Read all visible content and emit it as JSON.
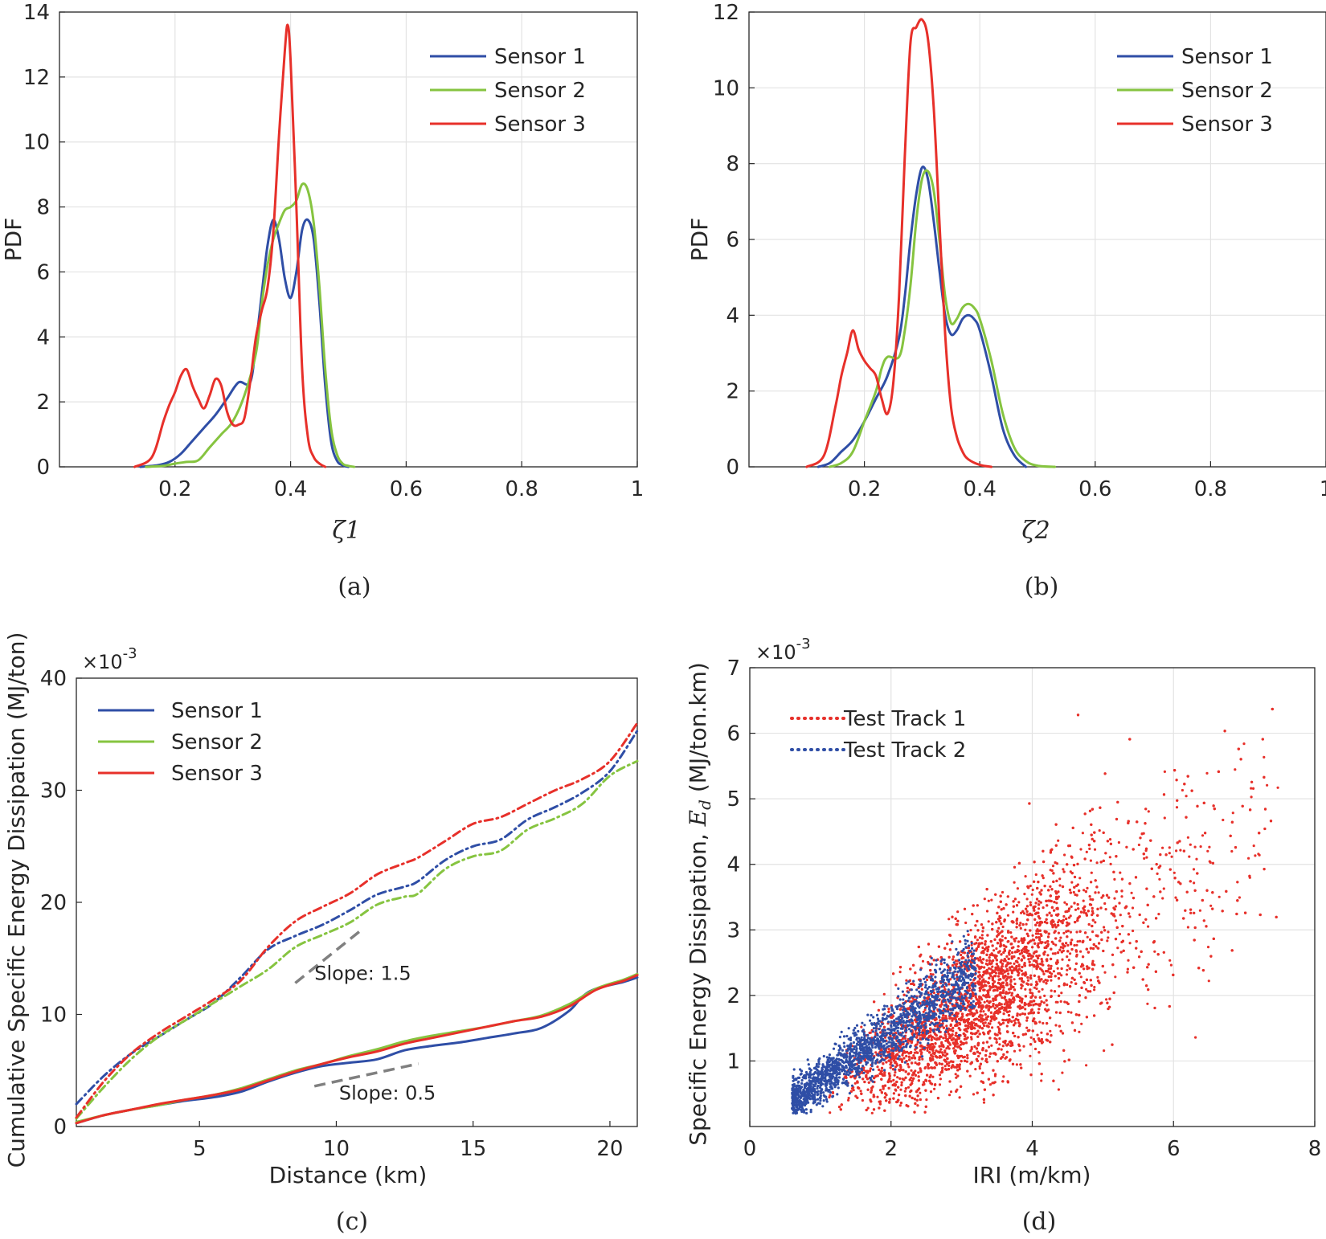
{
  "chart_data": [
    {
      "type": "line",
      "caption": "(a)",
      "xlabel": "ζ1",
      "ylabel": "PDF",
      "xlim": [
        0.0,
        1.0
      ],
      "ylim": [
        0,
        14
      ],
      "xticks": [
        0.2,
        0.4,
        0.6,
        0.8,
        1
      ],
      "yticks": [
        0,
        2,
        4,
        6,
        8,
        10,
        12,
        14
      ],
      "xtick_labels": [
        "0.2",
        "0.4",
        "0.6",
        "0.8",
        "1"
      ],
      "ytick_labels": [
        "0",
        "2",
        "4",
        "6",
        "8",
        "10",
        "12",
        "14"
      ],
      "grid": true,
      "legend": "top-right",
      "series": [
        {
          "name": "Sensor 1",
          "color": "#2f4ea6",
          "style": "solid",
          "x": [
            0.14,
            0.17,
            0.19,
            0.21,
            0.23,
            0.25,
            0.27,
            0.29,
            0.31,
            0.33,
            0.34,
            0.35,
            0.36,
            0.37,
            0.38,
            0.39,
            0.4,
            0.41,
            0.42,
            0.43,
            0.44,
            0.45,
            0.46,
            0.47,
            0.48,
            0.49,
            0.5
          ],
          "y": [
            0,
            0.05,
            0.15,
            0.4,
            0.8,
            1.2,
            1.6,
            2.1,
            2.6,
            2.6,
            3.8,
            5.3,
            6.8,
            7.6,
            7.0,
            5.8,
            5.2,
            6.0,
            7.3,
            7.6,
            7.0,
            5.0,
            2.5,
            0.8,
            0.2,
            0.05,
            0
          ]
        },
        {
          "name": "Sensor 2",
          "color": "#86c440",
          "style": "solid",
          "x": [
            0.15,
            0.18,
            0.2,
            0.22,
            0.24,
            0.26,
            0.28,
            0.3,
            0.32,
            0.34,
            0.35,
            0.36,
            0.37,
            0.38,
            0.39,
            0.4,
            0.41,
            0.42,
            0.43,
            0.44,
            0.45,
            0.46,
            0.47,
            0.48,
            0.49,
            0.5,
            0.51
          ],
          "y": [
            0,
            0.03,
            0.1,
            0.15,
            0.2,
            0.6,
            1.0,
            1.4,
            2.2,
            3.5,
            5.0,
            6.2,
            7.0,
            7.5,
            7.9,
            8.0,
            8.2,
            8.7,
            8.5,
            7.5,
            5.5,
            3.0,
            1.2,
            0.4,
            0.1,
            0.03,
            0
          ]
        },
        {
          "name": "Sensor 3",
          "color": "#e7302a",
          "style": "solid",
          "x": [
            0.13,
            0.16,
            0.18,
            0.19,
            0.2,
            0.21,
            0.22,
            0.23,
            0.24,
            0.25,
            0.26,
            0.27,
            0.28,
            0.29,
            0.3,
            0.31,
            0.32,
            0.33,
            0.34,
            0.35,
            0.36,
            0.37,
            0.38,
            0.39,
            0.395,
            0.4,
            0.41,
            0.42,
            0.43,
            0.44,
            0.45,
            0.46
          ],
          "y": [
            0,
            0.3,
            1.4,
            1.9,
            2.3,
            2.8,
            3.0,
            2.5,
            2.1,
            1.8,
            2.2,
            2.7,
            2.5,
            1.7,
            1.3,
            1.3,
            1.5,
            2.6,
            4.0,
            4.8,
            5.5,
            7.2,
            10.2,
            12.8,
            13.6,
            12.5,
            8.0,
            3.0,
            0.9,
            0.3,
            0.1,
            0
          ]
        }
      ]
    },
    {
      "type": "line",
      "caption": "(b)",
      "xlabel": "ζ2",
      "ylabel": "PDF",
      "xlim": [
        0.0,
        1.0
      ],
      "ylim": [
        0,
        12
      ],
      "xticks": [
        0.2,
        0.4,
        0.6,
        0.8,
        1
      ],
      "yticks": [
        0,
        2,
        4,
        6,
        8,
        10,
        12
      ],
      "xtick_labels": [
        "0.2",
        "0.4",
        "0.6",
        "0.8",
        "1"
      ],
      "ytick_labels": [
        "0",
        "2",
        "4",
        "6",
        "8",
        "10",
        "12"
      ],
      "grid": true,
      "legend": "top-right",
      "series": [
        {
          "name": "Sensor 1",
          "color": "#2f4ea6",
          "style": "solid",
          "x": [
            0.12,
            0.14,
            0.16,
            0.18,
            0.2,
            0.22,
            0.24,
            0.26,
            0.27,
            0.28,
            0.29,
            0.3,
            0.31,
            0.32,
            0.33,
            0.34,
            0.35,
            0.36,
            0.37,
            0.38,
            0.39,
            0.4,
            0.42,
            0.44,
            0.46,
            0.48
          ],
          "y": [
            0,
            0.1,
            0.4,
            0.7,
            1.2,
            1.8,
            2.4,
            3.4,
            4.5,
            6.0,
            7.2,
            7.9,
            7.6,
            6.5,
            5.2,
            4.0,
            3.5,
            3.6,
            3.9,
            4.0,
            3.9,
            3.6,
            2.4,
            1.0,
            0.3,
            0
          ]
        },
        {
          "name": "Sensor 2",
          "color": "#86c440",
          "style": "solid",
          "x": [
            0.14,
            0.16,
            0.18,
            0.2,
            0.22,
            0.23,
            0.24,
            0.26,
            0.27,
            0.28,
            0.29,
            0.3,
            0.31,
            0.32,
            0.33,
            0.34,
            0.35,
            0.36,
            0.37,
            0.38,
            0.39,
            0.4,
            0.42,
            0.44,
            0.46,
            0.48,
            0.5,
            0.53
          ],
          "y": [
            0,
            0.1,
            0.4,
            1.2,
            2.0,
            2.6,
            2.9,
            2.9,
            3.6,
            4.8,
            6.5,
            7.6,
            7.8,
            7.3,
            6.0,
            4.5,
            3.8,
            3.9,
            4.2,
            4.3,
            4.2,
            3.9,
            2.8,
            1.4,
            0.5,
            0.15,
            0.03,
            0
          ]
        },
        {
          "name": "Sensor 3",
          "color": "#e7302a",
          "style": "solid",
          "x": [
            0.1,
            0.13,
            0.15,
            0.16,
            0.17,
            0.18,
            0.19,
            0.2,
            0.21,
            0.22,
            0.23,
            0.24,
            0.25,
            0.26,
            0.27,
            0.28,
            0.29,
            0.3,
            0.31,
            0.32,
            0.33,
            0.34,
            0.35,
            0.36,
            0.37,
            0.38,
            0.4,
            0.42
          ],
          "y": [
            0,
            0.3,
            1.6,
            2.4,
            3.0,
            3.6,
            3.1,
            2.8,
            2.6,
            2.4,
            1.8,
            1.4,
            2.2,
            4.5,
            8.2,
            11.2,
            11.6,
            11.8,
            11.3,
            9.5,
            6.5,
            3.5,
            1.6,
            0.8,
            0.4,
            0.2,
            0.05,
            0
          ]
        }
      ]
    },
    {
      "type": "line",
      "caption": "(c)",
      "xlabel": "Distance (km)",
      "ylabel": "Cumulative Specific Energy Dissipation (MJ/ton)",
      "exponent": "×10",
      "exponent_power": "-3",
      "xlim": [
        0.5,
        21
      ],
      "ylim": [
        0,
        40
      ],
      "xticks": [
        5,
        10,
        15,
        20
      ],
      "yticks": [
        0,
        10,
        20,
        30,
        40
      ],
      "xtick_labels": [
        "5",
        "10",
        "15",
        "20"
      ],
      "ytick_labels": [
        "0",
        "10",
        "20",
        "30",
        "40"
      ],
      "grid": false,
      "legend": "top-left",
      "series": [
        {
          "name": "Sensor 1",
          "color": "#2f4ea6",
          "style": "solid",
          "x": [
            0.5,
            1.5,
            2.5,
            3.5,
            4.5,
            5.5,
            6.5,
            7.5,
            8.5,
            9.5,
            10.5,
            11.5,
            12.5,
            13.5,
            14.5,
            15.5,
            16.5,
            17.5,
            18.5,
            19.0,
            19.5,
            20.5,
            21.0
          ],
          "y": [
            0.3,
            1.0,
            1.5,
            1.9,
            2.3,
            2.6,
            3.1,
            4.0,
            4.8,
            5.4,
            5.7,
            6.0,
            6.8,
            7.2,
            7.5,
            7.9,
            8.3,
            8.8,
            10.3,
            11.6,
            12.3,
            12.9,
            13.3
          ]
        },
        {
          "name": "Sensor 2",
          "color": "#86c440",
          "style": "solid",
          "x": [
            0.5,
            1.5,
            2.5,
            3.5,
            4.5,
            5.5,
            6.5,
            7.5,
            8.5,
            9.5,
            10.5,
            11.5,
            12.5,
            13.5,
            14.5,
            15.5,
            16.5,
            17.5,
            18.5,
            19.5,
            20.5,
            21.0
          ],
          "y": [
            0.4,
            1.0,
            1.5,
            1.9,
            2.4,
            2.8,
            3.4,
            4.2,
            5.0,
            5.6,
            6.3,
            6.9,
            7.6,
            8.1,
            8.5,
            8.9,
            9.4,
            9.9,
            10.9,
            12.3,
            13.1,
            13.6
          ]
        },
        {
          "name": "Sensor 3",
          "color": "#e7302a",
          "style": "solid",
          "x": [
            0.5,
            1.5,
            2.5,
            3.5,
            4.5,
            5.5,
            6.5,
            7.5,
            8.5,
            9.5,
            10.5,
            11.5,
            12.5,
            13.5,
            14.5,
            15.5,
            16.5,
            17.5,
            18.5,
            19.5,
            20.5,
            21.0
          ],
          "y": [
            0.3,
            1.0,
            1.5,
            2.0,
            2.4,
            2.8,
            3.3,
            4.1,
            4.9,
            5.6,
            6.2,
            6.7,
            7.4,
            7.9,
            8.4,
            8.9,
            9.4,
            9.8,
            10.7,
            12.2,
            13.0,
            13.5
          ]
        },
        {
          "name": "Sensor 1",
          "color": "#2f4ea6",
          "style": "dashdot",
          "x": [
            0.5,
            1.5,
            2.5,
            3.5,
            4.5,
            5.5,
            6.5,
            7.5,
            8.5,
            9.5,
            10.5,
            11.5,
            12.5,
            13.0,
            14.0,
            15.0,
            16.0,
            17.0,
            18.0,
            19.0,
            20.0,
            21.0
          ],
          "y": [
            2.0,
            4.5,
            6.5,
            8.0,
            9.5,
            11.0,
            13.3,
            15.8,
            17.0,
            18.0,
            19.3,
            20.7,
            21.4,
            21.9,
            23.8,
            25.0,
            25.6,
            27.4,
            28.5,
            29.8,
            31.7,
            35.3
          ]
        },
        {
          "name": "Sensor 2",
          "color": "#86c440",
          "style": "dashdot",
          "x": [
            0.5,
            1.5,
            2.5,
            3.5,
            4.5,
            5.5,
            6.5,
            7.5,
            8.5,
            9.5,
            10.5,
            11.5,
            12.5,
            13.0,
            14.0,
            15.0,
            16.0,
            17.0,
            18.0,
            19.0,
            20.0,
            21.0
          ],
          "y": [
            0.7,
            3.5,
            6.0,
            8.0,
            9.5,
            11.0,
            12.5,
            14.0,
            16.0,
            17.1,
            18.2,
            19.8,
            20.5,
            20.8,
            23.0,
            24.1,
            24.6,
            26.5,
            27.5,
            28.8,
            31.3,
            32.6
          ]
        },
        {
          "name": "Sensor 3",
          "color": "#e7302a",
          "style": "dashdot",
          "x": [
            0.5,
            1.5,
            2.5,
            3.5,
            4.5,
            5.5,
            6.5,
            7.5,
            8.5,
            9.5,
            10.5,
            11.5,
            12.5,
            13.0,
            14.0,
            15.0,
            16.0,
            17.0,
            18.0,
            19.0,
            20.0,
            21.0
          ],
          "y": [
            0.8,
            4.0,
            6.5,
            8.3,
            9.8,
            11.3,
            13.0,
            16.0,
            18.3,
            19.6,
            20.8,
            22.5,
            23.5,
            24.0,
            25.5,
            27.0,
            27.6,
            28.8,
            30.0,
            31.0,
            32.6,
            36.0
          ]
        }
      ],
      "annotations": [
        {
          "text": "Slope: 1.5",
          "x1": 8.5,
          "y1": 12.8,
          "x2": 11.0,
          "y2": 17.7,
          "tx": 9.2,
          "ty": 13.1
        },
        {
          "text": "Slope: 0.5",
          "x1": 9.2,
          "y1": 3.6,
          "x2": 13.0,
          "y2": 5.6,
          "tx": 10.1,
          "ty": 2.4
        }
      ]
    },
    {
      "type": "scatter",
      "caption": "(d)",
      "xlabel": "IRI (m/km)",
      "ylabel": "Specific Energy Dissipation, ",
      "ylabel_symbol": "E",
      "ylabel_sub": "d",
      "ylabel_unit": " (MJ/ton.km)",
      "exponent": "×10",
      "exponent_power": "-3",
      "xlim": [
        0,
        8
      ],
      "ylim": [
        0,
        7
      ],
      "xticks": [
        0,
        2,
        4,
        6,
        8
      ],
      "yticks": [
        1,
        2,
        3,
        4,
        5,
        6,
        7
      ],
      "xtick_labels": [
        "0",
        "2",
        "4",
        "6",
        "8"
      ],
      "ytick_labels": [
        "1",
        "2",
        "3",
        "4",
        "5",
        "6",
        "7"
      ],
      "grid": true,
      "legend": "top-left",
      "series": [
        {
          "name": "Test Track 1",
          "color": "#e7302a",
          "style": "dotted",
          "count": 6000,
          "trend": {
            "x_range": [
              1.1,
              7.5
            ],
            "slope": 0.72,
            "intercept": -0.4
          }
        },
        {
          "name": "Test Track 2",
          "color": "#2f4ea6",
          "style": "dotted",
          "count": 1800,
          "trend": {
            "x_range": [
              0.6,
              3.2
            ],
            "slope": 0.75,
            "intercept": -0.05
          }
        }
      ]
    }
  ]
}
